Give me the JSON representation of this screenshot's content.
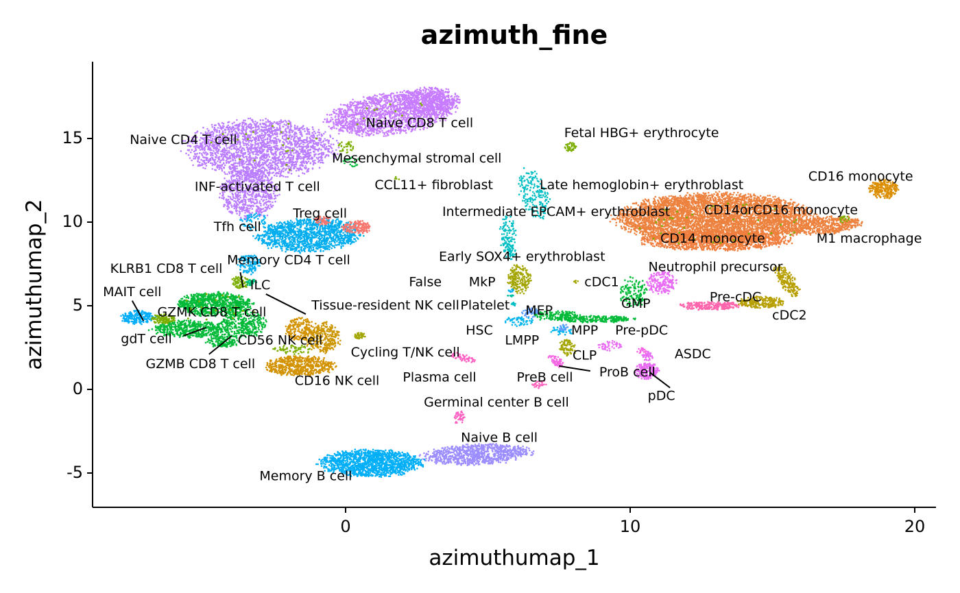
{
  "chart_data": {
    "type": "scatter",
    "title": "azimuth_fine",
    "xlabel": "azimuthumap_1",
    "ylabel": "azimuthumap_2",
    "xlim": [
      -9.0,
      20.8
    ],
    "ylim": [
      -7.0,
      19.5
    ],
    "xticks": [
      0,
      10,
      20
    ],
    "yticks": [
      -5,
      0,
      5,
      10,
      15
    ],
    "grid": false,
    "legend": "none",
    "clusters": [
      {
        "name": "Naive CD8 T cell",
        "color": "#C77CFF",
        "ellipses": [
          [
            1.6,
            16.5,
            2.3,
            1.2,
            15,
            1800
          ],
          [
            3.0,
            17.3,
            1.0,
            0.8,
            0,
            400
          ]
        ],
        "label": {
          "x": 2.6,
          "y": 15.9
        }
      },
      {
        "name": "Naive CD4 T cell",
        "color": "#BB7DFF",
        "ellipses": [
          [
            -3.0,
            14.4,
            2.6,
            1.7,
            0,
            2200
          ],
          [
            -3.4,
            11.7,
            1.0,
            1.5,
            0,
            700
          ]
        ],
        "label": {
          "x": -5.7,
          "y": 14.9
        }
      },
      {
        "name": "Memory CD4 T cell",
        "color": "#00AEF0",
        "ellipses": [
          [
            -1.3,
            9.2,
            1.8,
            1.0,
            5,
            1300
          ],
          [
            -3.4,
            7.5,
            0.4,
            0.6,
            0,
            120
          ]
        ],
        "label": {
          "x": -2.0,
          "y": 7.7
        }
      },
      {
        "name": "Treg cell",
        "color": "#F8766D",
        "ellipses": [
          [
            0.4,
            9.7,
            0.5,
            0.4,
            0,
            160
          ],
          [
            -0.8,
            10.1,
            0.3,
            0.3,
            0,
            60
          ]
        ],
        "label": {
          "x": -0.9,
          "y": 10.5
        }
      },
      {
        "name": "Tfh cell",
        "color": "#00B3F0",
        "ellipses": [
          [
            -3.2,
            10.0,
            0.5,
            0.5,
            0,
            60
          ]
        ],
        "label": {
          "x": -3.8,
          "y": 9.7
        }
      },
      {
        "name": "GZMK CD8 T cell",
        "color": "#00BA38",
        "ellipses": [
          [
            -4.6,
            5.1,
            1.3,
            0.7,
            0,
            900
          ],
          [
            -3.6,
            3.9,
            0.8,
            0.8,
            0,
            350
          ]
        ],
        "label": {
          "x": -4.7,
          "y": 4.6
        }
      },
      {
        "name": "GZMB CD8 T cell",
        "color": "#00BA38",
        "ellipses": [
          [
            -5.5,
            3.6,
            1.3,
            0.5,
            0,
            500
          ],
          [
            -4.3,
            2.9,
            0.6,
            0.4,
            0,
            160
          ]
        ],
        "label": {
          "x": -5.1,
          "y": 1.5
        }
      },
      {
        "name": "MAIT cell",
        "color": "#00ADFA",
        "ellipses": [
          [
            -7.3,
            4.3,
            0.6,
            0.4,
            0,
            220
          ]
        ],
        "label": {
          "x": -7.5,
          "y": 5.8
        }
      },
      {
        "name": "gdT cell",
        "color": "#7CAE00",
        "ellipses": [
          [
            -6.4,
            4.2,
            0.4,
            0.3,
            0,
            120
          ]
        ],
        "label": {
          "x": -7.0,
          "y": 3.0
        }
      },
      {
        "name": "KLRB1 CD8 T cell",
        "color": "#7CAE00",
        "ellipses": [
          [
            -3.7,
            6.4,
            0.3,
            0.4,
            0,
            80
          ]
        ],
        "label": {
          "x": -6.3,
          "y": 7.2
        }
      },
      {
        "name": "ILC",
        "color": "#00BF7D",
        "ellipses": [
          [
            -3.3,
            6.4,
            0.2,
            0.2,
            0,
            30
          ]
        ],
        "label": {
          "x": -3.0,
          "y": 6.2
        }
      },
      {
        "name": "CD56 NK cell",
        "color": "#CD9600",
        "ellipses": [
          [
            -0.8,
            3.1,
            0.6,
            0.9,
            0,
            300
          ]
        ],
        "label": {
          "x": -2.3,
          "y": 2.9
        }
      },
      {
        "name": "CD16 NK cell",
        "color": "#D39200",
        "ellipses": [
          [
            -1.6,
            1.4,
            1.2,
            0.6,
            0,
            600
          ],
          [
            -1.6,
            3.6,
            0.5,
            0.7,
            0,
            200
          ]
        ],
        "label": {
          "x": -0.3,
          "y": 0.5
        }
      },
      {
        "name": "Tissue-resident NK cell",
        "color": "#7CAE00",
        "ellipses": [
          [
            -1.8,
            2.4,
            0.8,
            0.3,
            0,
            60
          ]
        ],
        "label": {
          "x": 1.4,
          "y": 5.0
        }
      },
      {
        "name": "Cycling T/NK cell",
        "color": "#A3A500",
        "ellipses": [
          [
            0.5,
            3.2,
            0.2,
            0.2,
            0,
            40
          ]
        ],
        "label": {
          "x": 2.1,
          "y": 2.2
        }
      },
      {
        "name": "Mesenchymal stromal cell",
        "color": "#7CAE00",
        "ellipses": [
          [
            0.0,
            14.5,
            0.3,
            0.4,
            0,
            30
          ]
        ],
        "label": {
          "x": 2.5,
          "y": 13.8
        }
      },
      {
        "name": "INF-activated T cell",
        "color": "#00BA38",
        "ellipses": [
          [
            0.2,
            13.6,
            0.3,
            0.3,
            0,
            20
          ]
        ],
        "label": {
          "x": -3.1,
          "y": 12.1
        }
      },
      {
        "name": "CCL11+ fibroblast",
        "color": "#7CAE00",
        "ellipses": [
          [
            1.8,
            12.6,
            0.1,
            0.1,
            0,
            4
          ]
        ],
        "label": {
          "x": 3.1,
          "y": 12.2
        }
      },
      {
        "name": "Late hemoglobin+ erythroblast",
        "color": "#00BFC4",
        "ellipses": [
          [
            6.6,
            11.7,
            0.5,
            1.5,
            10,
            200
          ],
          [
            5.7,
            9.2,
            0.3,
            1.2,
            0,
            120
          ]
        ],
        "label": {
          "x": 10.4,
          "y": 12.2
        }
      },
      {
        "name": "Intermediate EPCAM+ erythroblast",
        "color": "#00BFC4",
        "ellipses": [
          [
            5.8,
            8.2,
            0.2,
            0.5,
            0,
            40
          ]
        ],
        "label": {
          "x": 7.4,
          "y": 10.6
        }
      },
      {
        "name": "Fetal HBG+ erythrocyte",
        "color": "#7CAE00",
        "ellipses": [
          [
            7.9,
            14.5,
            0.2,
            0.3,
            0,
            40
          ]
        ],
        "label": {
          "x": 10.4,
          "y": 15.3
        }
      },
      {
        "name": "Early SOX4+ erythroblast",
        "color": "#A3A500",
        "ellipses": [
          [
            6.1,
            6.6,
            0.4,
            0.9,
            0,
            200
          ]
        ],
        "label": {
          "x": 6.2,
          "y": 7.9
        }
      },
      {
        "name": "False",
        "color": "#00C1A3",
        "ellipses": [
          [
            5.8,
            5.6,
            0.1,
            0.1,
            0,
            8
          ]
        ],
        "label": {
          "x": 2.8,
          "y": 6.4
        }
      },
      {
        "name": "MkP",
        "color": "#00B0F6",
        "ellipses": [
          [
            5.8,
            5.9,
            0.1,
            0.1,
            0,
            10
          ]
        ],
        "label": {
          "x": 4.8,
          "y": 6.4
        }
      },
      {
        "name": "Platelet",
        "color": "#00BFC4",
        "ellipses": [
          [
            5.9,
            5.1,
            0.1,
            0.1,
            0,
            8
          ]
        ],
        "label": {
          "x": 4.9,
          "y": 5.0
        }
      },
      {
        "name": "MEP",
        "color": "#619CFF",
        "ellipses": [
          [
            6.5,
            4.6,
            0.3,
            0.3,
            0,
            60
          ]
        ],
        "label": {
          "x": 6.8,
          "y": 4.7
        }
      },
      {
        "name": "HSC",
        "color": "#00B4EF",
        "ellipses": [
          [
            6.1,
            4.1,
            0.5,
            0.3,
            0,
            60
          ]
        ],
        "label": {
          "x": 4.7,
          "y": 3.5
        }
      },
      {
        "name": "LMPP",
        "color": "#00B4EF",
        "ellipses": [
          [
            7.6,
            3.5,
            0.4,
            0.3,
            0,
            40
          ]
        ],
        "label": {
          "x": 6.2,
          "y": 2.9
        }
      },
      {
        "name": "MPP",
        "color": "#619CFF",
        "ellipses": [
          [
            7.7,
            3.7,
            0.2,
            0.2,
            0,
            20
          ]
        ],
        "label": {
          "x": 8.4,
          "y": 3.5
        }
      },
      {
        "name": "GMP",
        "color": "#00BA38",
        "ellipses": [
          [
            8.8,
            4.2,
            1.3,
            0.2,
            0,
            250
          ],
          [
            7.4,
            4.4,
            0.8,
            0.3,
            0,
            150
          ],
          [
            10.1,
            5.8,
            0.5,
            0.9,
            0,
            150
          ]
        ],
        "label": {
          "x": 10.2,
          "y": 5.1
        }
      },
      {
        "name": "Pre-pDC",
        "color": "#E76BF3",
        "ellipses": [
          [
            9.3,
            2.6,
            0.4,
            0.3,
            0,
            50
          ]
        ],
        "label": {
          "x": 10.4,
          "y": 3.5
        }
      },
      {
        "name": "CLP",
        "color": "#A3A500",
        "ellipses": [
          [
            7.8,
            2.5,
            0.3,
            0.5,
            0,
            80
          ]
        ],
        "label": {
          "x": 8.4,
          "y": 2.0
        }
      },
      {
        "name": "ProB cell",
        "color": "#F564E3",
        "ellipses": [
          [
            7.4,
            1.7,
            0.2,
            0.4,
            30,
            60
          ]
        ],
        "label": {
          "x": 9.9,
          "y": 1.0
        }
      },
      {
        "name": "PreB cell",
        "color": "#FF62BC",
        "ellipses": [
          [
            6.8,
            0.3,
            0.3,
            0.2,
            30,
            30
          ]
        ],
        "label": {
          "x": 7.0,
          "y": 0.7
        }
      },
      {
        "name": "pDC",
        "color": "#E76BF3",
        "ellipses": [
          [
            10.6,
            1.1,
            0.4,
            0.5,
            0,
            200
          ],
          [
            10.6,
            2.0,
            0.2,
            0.3,
            0,
            40
          ]
        ],
        "label": {
          "x": 11.1,
          "y": -0.4
        }
      },
      {
        "name": "ASDC",
        "color": "#F564E3",
        "ellipses": [
          [
            10.4,
            2.3,
            0.2,
            0.2,
            0,
            20
          ]
        ],
        "label": {
          "x": 12.2,
          "y": 2.1
        }
      },
      {
        "name": "Plasma cell",
        "color": "#FF61C3",
        "ellipses": [
          [
            4.1,
            1.9,
            0.5,
            0.2,
            -25,
            60
          ]
        ],
        "label": {
          "x": 3.3,
          "y": 0.7
        }
      },
      {
        "name": "Germinal center B cell",
        "color": "#FF61C3",
        "ellipses": [
          [
            4.0,
            -1.7,
            0.2,
            0.4,
            0,
            40
          ]
        ],
        "label": {
          "x": 5.3,
          "y": -0.8
        }
      },
      {
        "name": "Memory B cell",
        "color": "#00AFF8",
        "ellipses": [
          [
            0.9,
            -4.4,
            1.8,
            0.8,
            0,
            1400
          ]
        ],
        "label": {
          "x": -1.4,
          "y": -5.2
        }
      },
      {
        "name": "Naive B cell",
        "color": "#9D8EFF",
        "ellipses": [
          [
            4.6,
            -3.9,
            1.9,
            0.6,
            5,
            900
          ]
        ],
        "label": {
          "x": 5.4,
          "y": -2.9
        }
      },
      {
        "name": "CD14orCD16 monocyte",
        "color": "#ED813E",
        "ellipses": [
          [
            13.0,
            10.2,
            3.4,
            1.5,
            0,
            5000
          ],
          [
            16.9,
            9.8,
            1.2,
            0.5,
            10,
            500
          ]
        ],
        "label": {
          "x": 15.3,
          "y": 10.7
        }
      },
      {
        "name": "CD14 monocyte",
        "color": "#F07E3E",
        "ellipses": [
          [
            13.0,
            8.9,
            2.6,
            0.6,
            0,
            1200
          ]
        ],
        "label": {
          "x": 12.9,
          "y": 9.0
        }
      },
      {
        "name": "CD16 monocyte",
        "color": "#DB8E00",
        "ellipses": [
          [
            18.9,
            12.0,
            0.5,
            0.6,
            0,
            250
          ]
        ],
        "label": {
          "x": 18.1,
          "y": 12.7
        }
      },
      {
        "name": "M1 macrophage",
        "color": "#7CAE00",
        "ellipses": [
          [
            17.5,
            10.2,
            0.2,
            0.2,
            0,
            20
          ]
        ],
        "label": {
          "x": 18.4,
          "y": 9.0
        }
      },
      {
        "name": "Neutrophil precursor",
        "color": "#E76BF3",
        "ellipses": [
          [
            11.1,
            6.4,
            0.5,
            0.7,
            0,
            200
          ]
        ],
        "label": {
          "x": 13.0,
          "y": 7.3
        }
      },
      {
        "name": "cDC1",
        "color": "#A3A500",
        "ellipses": [
          [
            8.1,
            6.4,
            0.1,
            0.1,
            0,
            6
          ]
        ],
        "label": {
          "x": 9.0,
          "y": 6.4
        }
      },
      {
        "name": "Pre-cDC",
        "color": "#FF65AC",
        "ellipses": [
          [
            12.8,
            5.0,
            1.1,
            0.25,
            0,
            250
          ]
        ],
        "label": {
          "x": 13.7,
          "y": 5.5
        }
      },
      {
        "name": "cDC2",
        "color": "#B79F00",
        "ellipses": [
          [
            14.6,
            5.2,
            0.8,
            0.35,
            0,
            250
          ],
          [
            15.5,
            6.5,
            0.3,
            1.0,
            20,
            200
          ]
        ],
        "label": {
          "x": 15.6,
          "y": 4.4
        }
      }
    ],
    "leaders": [
      {
        "label": "MAIT cell",
        "from": [
          -7.5,
          5.3
        ],
        "to": [
          -7.1,
          4.1
        ]
      },
      {
        "label": "gdT cell",
        "from": [
          -5.7,
          3.2
        ],
        "to": [
          -4.9,
          3.7
        ]
      },
      {
        "label": "GZMB CD8 T cell",
        "from": [
          -4.8,
          2.1
        ],
        "to": [
          -4.0,
          3.2
        ]
      },
      {
        "label": "KLRB1 CD8 T cell",
        "from": [
          -3.7,
          7.0
        ],
        "to": [
          -3.6,
          6.1
        ]
      },
      {
        "label": "ILC",
        "from": [
          -2.8,
          5.7
        ],
        "to": [
          -1.4,
          4.5
        ]
      },
      {
        "label": "ProB cell",
        "from": [
          8.6,
          1.1
        ],
        "to": [
          7.5,
          1.4
        ]
      },
      {
        "label": "pDC",
        "from": [
          11.4,
          0.1
        ],
        "to": [
          10.7,
          1.0
        ]
      }
    ]
  }
}
